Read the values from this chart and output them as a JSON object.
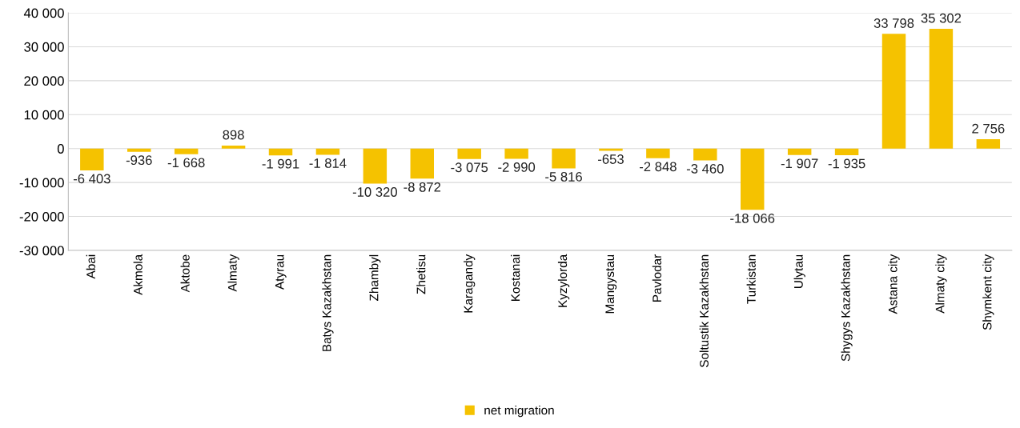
{
  "chart_data": {
    "type": "bar",
    "categories": [
      "Abai",
      "Akmola",
      "Aktobe",
      "Almaty",
      "Atyrau",
      "Batys Kazakhstan",
      "Zhambyl",
      "Zhetisu",
      "Karagandy",
      "Kostanai",
      "Kyzylorda",
      "Mangystau",
      "Pavlodar",
      "Soltustik Kazakhstan",
      "Turkistan",
      "Ulytau",
      "Shygys Kazakhstan",
      "Astana city",
      "Almaty city",
      "Shymkent city"
    ],
    "series": [
      {
        "name": "net migration",
        "color": "#f5c200",
        "values": [
          -6403,
          -936,
          -1668,
          898,
          -1991,
          -1814,
          -10320,
          -8872,
          -3075,
          -2990,
          -5816,
          -653,
          -2848,
          -3460,
          -18066,
          -1907,
          -1935,
          33798,
          35302,
          2756
        ],
        "value_labels": [
          "-6 403",
          "-936",
          "-1 668",
          "898",
          "-1 991",
          "-1 814",
          "-10 320",
          "-8 872",
          "-3 075",
          "-2 990",
          "-5 816",
          "-653",
          "-2 848",
          "-3 460",
          "-18 066",
          "-1 907",
          "-1 935",
          "33 798",
          "35 302",
          "2 756"
        ]
      }
    ],
    "ylim": [
      -30000,
      40000
    ],
    "yticks": [
      {
        "value": -30000,
        "label": "-30 000"
      },
      {
        "value": -20000,
        "label": "-20 000"
      },
      {
        "value": -10000,
        "label": "-10 000"
      },
      0,
      {
        "value": 10000,
        "label": "10 000"
      },
      {
        "value": 20000,
        "label": "20 000"
      },
      {
        "value": 30000,
        "label": "30 000"
      },
      {
        "value": 40000,
        "label": "40 000"
      }
    ],
    "grid": "y",
    "legend": "bottom"
  }
}
